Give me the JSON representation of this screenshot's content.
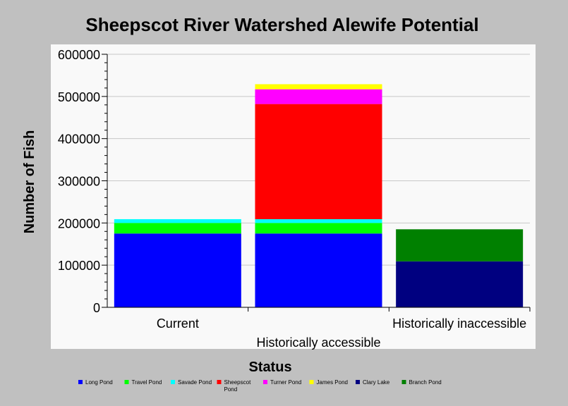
{
  "chart_data": {
    "type": "bar",
    "stacked": true,
    "title": "Sheepscot River Watershed Alewife Potential",
    "xlabel": "Status",
    "ylabel": "Number of Fish",
    "ylim": [
      0,
      600000
    ],
    "yticks": [
      "0",
      "100000",
      "200000",
      "300000",
      "400000",
      "500000",
      "600000"
    ],
    "categories": [
      "Current",
      "Historically accessible",
      "Historically inaccessible"
    ],
    "grid": true,
    "legend_position": "bottom",
    "series": [
      {
        "name": "Long Pond",
        "color": "#0000ff",
        "values": [
          175000,
          175000,
          0
        ]
      },
      {
        "name": "Travel Pond",
        "color": "#00ff00",
        "values": [
          25000,
          25000,
          0
        ]
      },
      {
        "name": "Savade Pond",
        "color": "#00ffff",
        "values": [
          9000,
          9000,
          0
        ]
      },
      {
        "name": "Sheepscot Pond",
        "color": "#ff0000",
        "values": [
          0,
          273000,
          0
        ]
      },
      {
        "name": "Turner Pond",
        "color": "#ff00ff",
        "values": [
          0,
          35000,
          0
        ]
      },
      {
        "name": "James Pond",
        "color": "#ffff00",
        "values": [
          0,
          12000,
          0
        ]
      },
      {
        "name": "Clary Lake",
        "color": "#000080",
        "values": [
          0,
          0,
          109000
        ]
      },
      {
        "name": "Branch Pond",
        "color": "#008000",
        "values": [
          0,
          0,
          76000
        ]
      }
    ]
  }
}
